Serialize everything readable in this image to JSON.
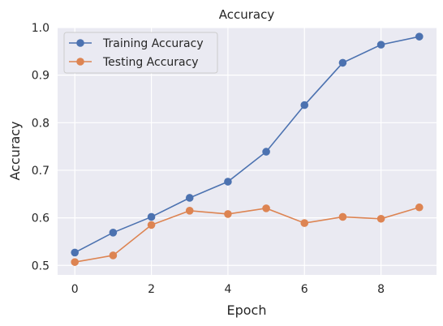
{
  "chart_data": {
    "type": "line",
    "title": "Accuracy",
    "xlabel": "Epoch",
    "ylabel": "Accuracy",
    "x": [
      0,
      1,
      2,
      3,
      4,
      5,
      6,
      7,
      8,
      9
    ],
    "xlim": [
      -0.45,
      9.45
    ],
    "ylim": [
      0.48,
      1.0
    ],
    "xticks": [
      0,
      2,
      4,
      6,
      8
    ],
    "xtick_labels": [
      "0",
      "2",
      "4",
      "6",
      "8"
    ],
    "yticks": [
      0.5,
      0.6,
      0.7,
      0.8,
      0.9,
      1.0
    ],
    "ytick_labels": [
      "0.5",
      "0.6",
      "0.7",
      "0.8",
      "0.9",
      "1.0"
    ],
    "grid": true,
    "legend_position": "top-left",
    "series": [
      {
        "name": "Training Accuracy",
        "color": "#4c72b0",
        "values": [
          0.527,
          0.569,
          0.602,
          0.642,
          0.676,
          0.739,
          0.837,
          0.926,
          0.964,
          0.981
        ]
      },
      {
        "name": "Testing Accuracy",
        "color": "#dd8452",
        "values": [
          0.507,
          0.521,
          0.585,
          0.615,
          0.608,
          0.62,
          0.589,
          0.602,
          0.598,
          0.622
        ]
      }
    ]
  }
}
